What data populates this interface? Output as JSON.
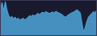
{
  "chart_data": {
    "type": "area",
    "values": [
      72,
      90,
      68,
      92,
      70,
      55,
      48,
      52,
      46,
      50,
      44,
      47,
      42,
      45,
      47,
      43,
      46,
      50,
      54,
      52,
      56,
      53,
      57,
      60,
      57,
      61,
      63,
      61,
      65,
      62,
      60,
      62,
      64,
      61,
      66,
      63,
      61,
      59,
      56,
      52,
      50,
      54,
      57,
      60,
      62,
      64,
      67,
      70,
      66,
      62,
      35,
      10,
      22,
      38,
      50,
      55,
      60,
      65,
      62,
      68
    ],
    "color": "#4da6d8",
    "ylim": [
      0,
      95
    ],
    "tick_labels": false
  }
}
